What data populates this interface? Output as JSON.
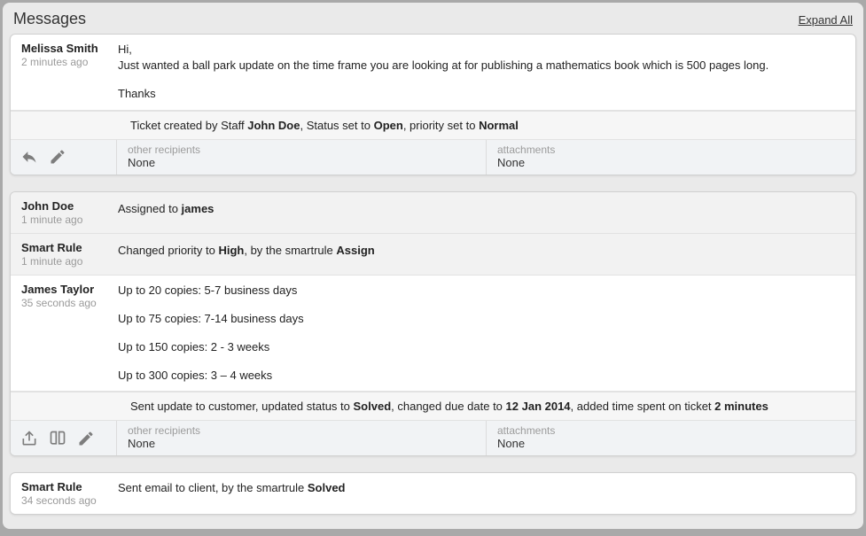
{
  "header": {
    "title": "Messages",
    "expand_all": "Expand All"
  },
  "footer_labels": {
    "other_recipients": "other recipients",
    "attachments": "attachments"
  },
  "card1": {
    "msg1": {
      "author": "Melissa Smith",
      "time": "2 minutes ago",
      "p1": "Hi,",
      "p2": "Just wanted a ball park update on the time frame you are looking at for publishing a mathematics book which is 500 pages long.",
      "p3": "Thanks"
    },
    "note": "Ticket created by Staff <b>John Doe</b>, Status set to <b>Open</b>, priority set to <b>Normal</b>",
    "footer": {
      "other_recipients_value": "None",
      "attachments_value": "None"
    }
  },
  "card2": {
    "row1": {
      "author": "John Doe",
      "time": "1 minute ago",
      "body": "Assigned to <b>james</b>"
    },
    "row2": {
      "author": "Smart Rule",
      "time": "1 minute ago",
      "body": "Changed priority to <b>High</b>, by the smartrule <b>Assign</b>"
    },
    "row3": {
      "author": "James Taylor",
      "time": "35 seconds ago",
      "p1": "Up to 20 copies: 5-7 business days",
      "p2": "Up to 75 copies: 7-14 business days",
      "p3": "Up to 150 copies: 2 - 3 weeks",
      "p4": "Up to 300 copies: 3 – 4 weeks"
    },
    "note": "Sent update to customer, updated status to <b>Solved</b>, changed due date to <b>12 Jan 2014</b>, added time spent on ticket <b>2 minutes</b>",
    "footer": {
      "other_recipients_value": "None",
      "attachments_value": "None"
    }
  },
  "card3": {
    "row1": {
      "author": "Smart Rule",
      "time": "34 seconds ago",
      "body": "Sent email to client, by the smartrule <b>Solved</b>"
    }
  }
}
